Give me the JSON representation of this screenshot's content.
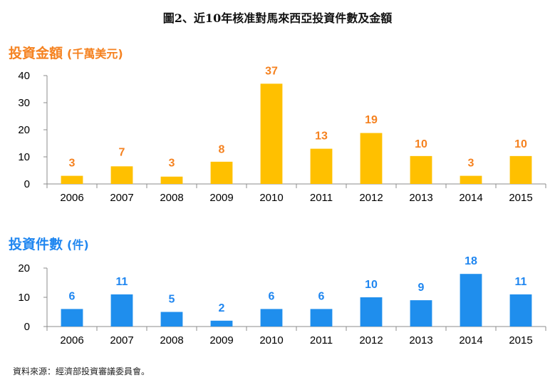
{
  "title": "圖2、近10年核准對馬來西亞投資件數及金額",
  "source": "資料來源：經濟部投資審議委員會。",
  "colors": {
    "amount_bar": "#ffc000",
    "amount_label": "#f58220",
    "count_bar": "#1f8eed",
    "count_label": "#1f86f0"
  },
  "chart_data": [
    {
      "type": "bar",
      "heading": "投資金額",
      "unit": "(千萬美元)",
      "categories": [
        "2006",
        "2007",
        "2008",
        "2009",
        "2010",
        "2011",
        "2012",
        "2013",
        "2014",
        "2015"
      ],
      "values": [
        3,
        7,
        3,
        8,
        37,
        13,
        19,
        10,
        3,
        10
      ],
      "bar_values": [
        3,
        6.5,
        2.7,
        8.2,
        37,
        13,
        18.8,
        10.3,
        3,
        10.3
      ],
      "ylim": [
        0,
        40
      ],
      "yticks": [
        "0",
        "10",
        "20",
        "30",
        "40"
      ],
      "grid": false,
      "legend": "none"
    },
    {
      "type": "bar",
      "heading": "投資件數",
      "unit": "(件)",
      "categories": [
        "2006",
        "2007",
        "2008",
        "2009",
        "2010",
        "2011",
        "2012",
        "2013",
        "2014",
        "2015"
      ],
      "values": [
        6,
        11,
        5,
        2,
        6,
        6,
        10,
        9,
        18,
        11
      ],
      "ylim": [
        0,
        20
      ],
      "yticks": [
        "0",
        "10",
        "20"
      ],
      "grid": false,
      "legend": "none"
    }
  ]
}
